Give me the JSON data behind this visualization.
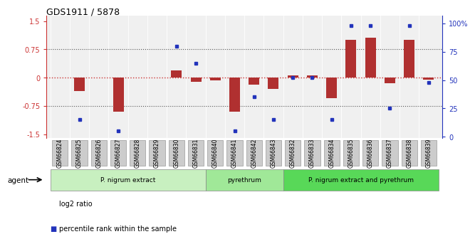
{
  "title": "GDS1911 / 5878",
  "samples": [
    "GSM66824",
    "GSM66825",
    "GSM66826",
    "GSM66827",
    "GSM66828",
    "GSM66829",
    "GSM66830",
    "GSM66831",
    "GSM66840",
    "GSM66841",
    "GSM66842",
    "GSM66843",
    "GSM66832",
    "GSM66833",
    "GSM66834",
    "GSM66835",
    "GSM66836",
    "GSM66837",
    "GSM66838",
    "GSM66839"
  ],
  "log2_ratio": [
    0.0,
    -0.35,
    0.0,
    -0.9,
    0.0,
    0.0,
    0.2,
    -0.12,
    -0.08,
    -0.9,
    -0.18,
    -0.3,
    0.05,
    0.05,
    -0.55,
    1.0,
    1.05,
    -0.15,
    1.0,
    -0.05
  ],
  "percentile": [
    null,
    15,
    null,
    5,
    null,
    null,
    80,
    65,
    null,
    5,
    35,
    15,
    52,
    52,
    15,
    98,
    98,
    25,
    98,
    48
  ],
  "groups": [
    {
      "label": "P. nigrum extract",
      "start": 0,
      "end": 7,
      "color": "#c8f0c0"
    },
    {
      "label": "pyrethrum",
      "start": 8,
      "end": 11,
      "color": "#a0e898"
    },
    {
      "label": "P. nigrum extract and pyrethrum",
      "start": 12,
      "end": 19,
      "color": "#58d858"
    }
  ],
  "ylim_left": [
    -1.6,
    1.65
  ],
  "ylim_right": [
    -1.07,
    107
  ],
  "yticks_left": [
    -1.5,
    -0.75,
    0.0,
    0.75,
    1.5
  ],
  "ytick_labels_left": [
    "-1.5",
    "-0.75",
    "0",
    "0.75",
    "1.5"
  ],
  "yticks_right": [
    0,
    25,
    50,
    75,
    100
  ],
  "ytick_labels_right": [
    "0",
    "25",
    "50",
    "75",
    "100%"
  ],
  "bar_color": "#b03030",
  "dot_color": "#2233bb",
  "hline_color": "#cc3333",
  "dotted_color": "#555555",
  "bg_plot": "#f0f0f0",
  "tick_box_color": "#cccccc",
  "tick_box_edge": "#999999",
  "agent_label": "agent",
  "legend_bar_label": "log2 ratio",
  "legend_dot_label": "percentile rank within the sample",
  "left_spine_color": "#cc3333",
  "right_spine_color": "#2233bb"
}
